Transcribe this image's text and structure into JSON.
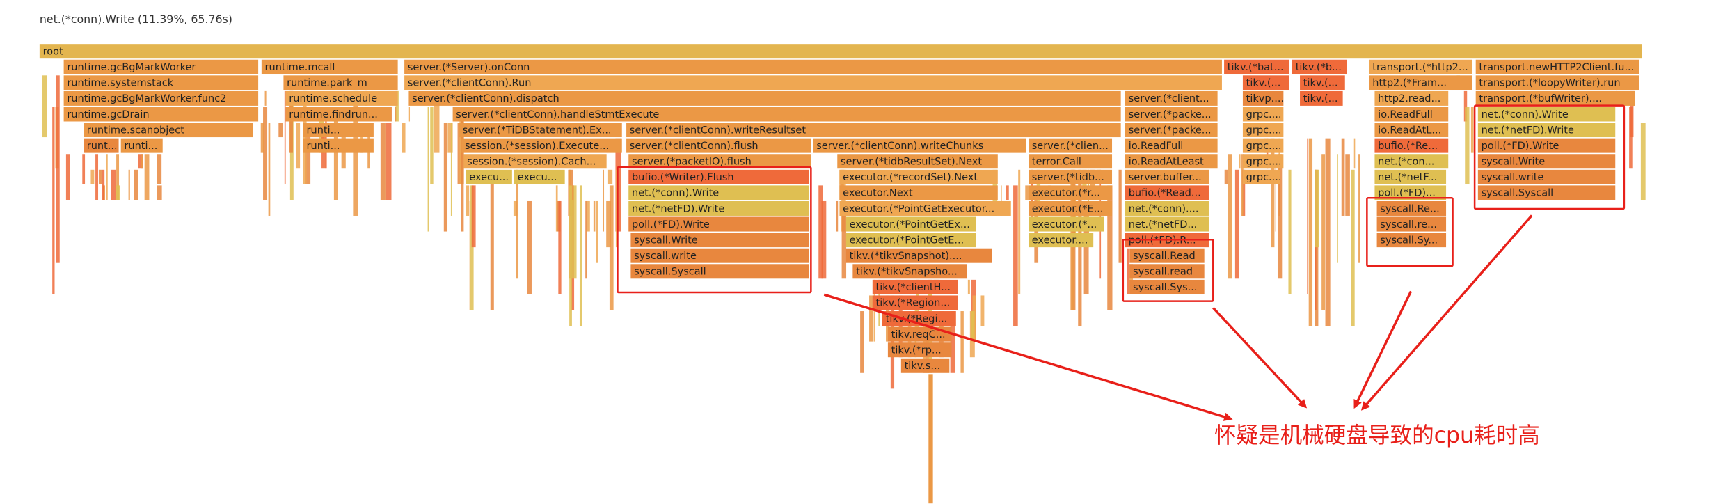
{
  "header": {
    "title": "net.(*conn).Write (11.39%, 65.76s)"
  },
  "frames": [
    "root",
    "runtime.gcBgMarkWorker",
    "runtime.mcall",
    "server.(*Server).onConn",
    "tikv.(*bat...",
    "tikv.(*b...",
    "transport.(*http2...",
    "transport.newHTTP2Client.fu...",
    "runtime.systemstack",
    "runtime.park_m",
    "server.(*clientConn).Run",
    "tikv.(...",
    "tikv.(...",
    "http2.(*Fram...",
    "transport.(*loopyWriter).run",
    "runtime.gcBgMarkWorker.func2",
    "runtime.schedule",
    "server.(*clientConn).dispatch",
    "server.(*client...",
    "tikvp....",
    "tikv.(...",
    "http2.read...",
    "transport.(*bufWriter)....",
    "runtime.gcDrain",
    "runtime.findrun...",
    "server.(*clientConn).handleStmtExecute",
    "server.(*packe...",
    "grpc....",
    "io.ReadFull",
    "net.(*conn).Write",
    "runtime.scanobject",
    "runti...",
    "server.(*TiDBStatement).Ex...",
    "server.(*clientConn).writeResultset",
    "server.(*packe...",
    "grpc....",
    "io.ReadAtL...",
    "net.(*netFD).Write",
    "runt...",
    "runti...",
    "runti...",
    "session.(*session).Execute...",
    "server.(*clientConn).flush",
    "server.(*clientConn).writeChunks",
    "server.(*clien...",
    "io.ReadFull",
    "grpc....",
    "bufio.(*Re...",
    "poll.(*FD).Write",
    "session.(*session).Cach...",
    "server.(*packetIO).flush",
    "server.(*tidbResultSet).Next",
    "terror.Call",
    "io.ReadAtLeast",
    "grpc....",
    "net.(*con...",
    "syscall.Write",
    "execu...",
    "execu...",
    "bufio.(*Writer).Flush",
    "executor.(*recordSet).Next",
    "server.(*tidb...",
    "server.buffer...",
    "grpc....",
    "net.(*netF...",
    "syscall.write",
    "net.(*conn).Write",
    "executor.Next",
    "executor.(*r...",
    "bufio.(*Read...",
    "poll.(*FD)...",
    "syscall.Syscall",
    "net.(*netFD).Write",
    "executor.(*PointGetExecutor...",
    "executor.(*E...",
    "net.(*conn)....",
    "syscall.Re...",
    "poll.(*FD).Write",
    "executor.(*PointGetEx...",
    "executor.(*...",
    "net.(*netFD...",
    "syscall.re...",
    "syscall.Write",
    "executor.(*PointGetE...",
    "executor....",
    "poll.(*FD).R...",
    "syscall.Sy...",
    "syscall.write",
    "tikv.(*tikvSnapshot)....",
    "syscall.Read",
    "syscall.Syscall",
    "tikv.(*tikvSnapsho...",
    "syscall.read",
    "tikv.(*clientH...",
    "syscall.Sys...",
    "tikv.(*Region...",
    "tikv.(*Regi...",
    "tikv.reqC...",
    "tikv.(*rp...",
    "tikv.s..."
  ],
  "annotation": "怀疑是机械硬盘导致的cpu耗时高"
}
